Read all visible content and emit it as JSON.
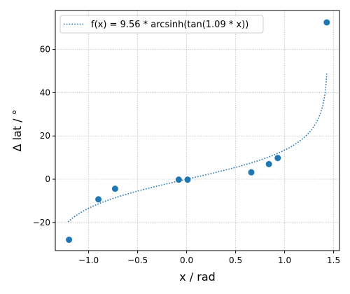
{
  "chart_data": {
    "type": "scatter",
    "xlabel": "x / rad",
    "ylabel": "Δ lat / °",
    "xlim": [
      -1.34,
      1.56
    ],
    "ylim": [
      -33,
      78
    ],
    "xticks": [
      -1.0,
      -0.5,
      0.0,
      0.5,
      1.0,
      1.5
    ],
    "xtick_labels": [
      "−1.0",
      "−0.5",
      "0.0",
      "0.5",
      "1.0",
      "1.5"
    ],
    "yticks": [
      -20,
      0,
      20,
      40,
      60
    ],
    "ytick_labels": [
      "−20",
      "0",
      "20",
      "40",
      "60"
    ],
    "grid": true,
    "legend": {
      "placement": "top-left",
      "label": "f(x) = 9.56 * arcsinh(tan(1.09 * x))"
    },
    "fit": {
      "name": "f(x) = 9.56 * arcsinh(tan(1.09 * x))",
      "a": 9.56,
      "b": 1.09,
      "x_range": [
        -1.21,
        1.43
      ],
      "style": "dotted",
      "color": "#1f77b4"
    },
    "points": {
      "color": "#1f77b4",
      "x": [
        -1.2,
        -0.9,
        -0.73,
        -0.08,
        0.01,
        0.66,
        0.84,
        0.93,
        1.43
      ],
      "y": [
        -28,
        -9.3,
        -4.4,
        -0.2,
        -0.2,
        3.2,
        7.0,
        9.8,
        72.5
      ]
    }
  }
}
